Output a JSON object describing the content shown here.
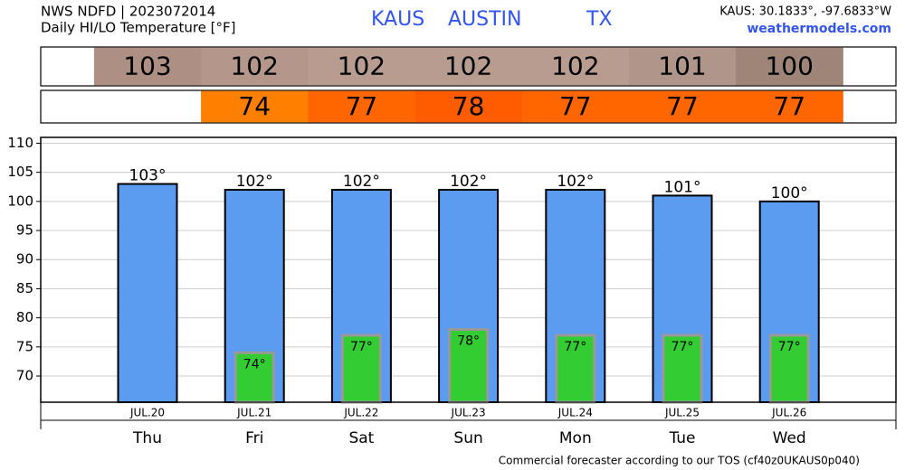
{
  "chart_data": {
    "type": "bar",
    "title": "NWS NDFD | 2023072014",
    "subtitle": "Daily HI/LO Temperature [°F]",
    "station": "KAUS",
    "city": "AUSTIN",
    "state": "TX",
    "location": "KAUS: 30.1833°, -97.6833°W",
    "site": "weathermodels.com",
    "footer": "Commercial forecaster according to our TOS (cf40z0UKAUS0p040)",
    "categories": [
      "Thu",
      "Fri",
      "Sat",
      "Sun",
      "Mon",
      "Tue",
      "Wed"
    ],
    "dates": [
      "JUL.20",
      "JUL.21",
      "JUL.22",
      "JUL.23",
      "JUL.24",
      "JUL.25",
      "JUL.26"
    ],
    "series": [
      {
        "name": "HI",
        "color": "#5b9cf0",
        "values": [
          103,
          102,
          102,
          102,
          102,
          101,
          100
        ],
        "value_labels": [
          "103°",
          "102°",
          "102°",
          "102°",
          "102°",
          "101°",
          "100°"
        ],
        "strip_colors": [
          "#ad8f83",
          "#b4968a",
          "#b89c90",
          "#b89c90",
          "#b89c90",
          "#b0958a",
          "#9f8478"
        ]
      },
      {
        "name": "LO",
        "color": "#33cc33",
        "values": [
          null,
          74,
          77,
          78,
          77,
          77,
          77
        ],
        "value_labels": [
          null,
          "74°",
          "77°",
          "78°",
          "77°",
          "77°",
          "77°"
        ],
        "strip_colors": [
          null,
          "#ff8000",
          "#ff6600",
          "#ff5c00",
          "#ff6600",
          "#ff6600",
          "#ff6600"
        ]
      }
    ],
    "ylim": [
      65.5,
      111
    ],
    "yticks": [
      70,
      75,
      80,
      85,
      90,
      95,
      100,
      105,
      110
    ],
    "grid": true
  }
}
